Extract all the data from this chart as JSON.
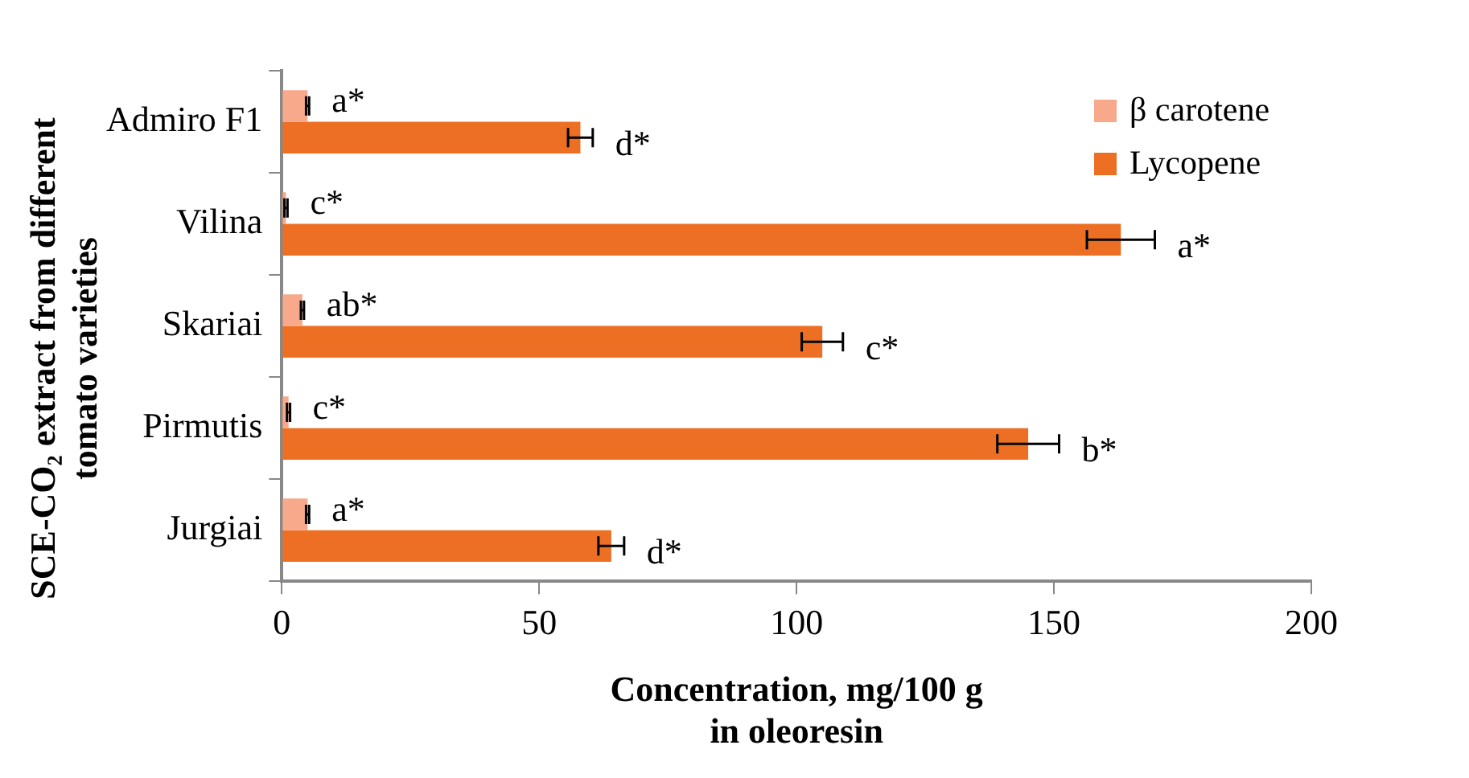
{
  "chart_data": {
    "type": "bar",
    "orientation": "horizontal",
    "xlabel": "Concentration, mg/100 g in oleoresin",
    "ylabel": "SCE-CO₂ extract from different tomato varieties",
    "categories": [
      "Admiro F1",
      "Vilina",
      "Skariai",
      "Pirmutis",
      "Jurgiai"
    ],
    "series": [
      {
        "name": "β carotene",
        "color": "#f8a98b",
        "values": [
          5,
          0.8,
          4,
          1.3,
          5
        ],
        "errors": [
          0.3,
          0.3,
          0.3,
          0.3,
          0.3
        ],
        "value_labels": [
          "a*",
          "c*",
          "ab*",
          "c*",
          "a*"
        ]
      },
      {
        "name": "Lycopene",
        "color": "#ec6f23",
        "values": [
          58,
          163,
          105,
          145,
          64
        ],
        "errors": [
          2.4,
          6.6,
          4,
          6,
          2.5
        ],
        "value_labels": [
          "d*",
          "a*",
          "c*",
          "b*",
          "d*"
        ]
      }
    ],
    "xlim": [
      0,
      200
    ],
    "xticks": [
      0,
      50,
      100,
      150,
      200
    ],
    "grid": false,
    "legend": "top right"
  }
}
